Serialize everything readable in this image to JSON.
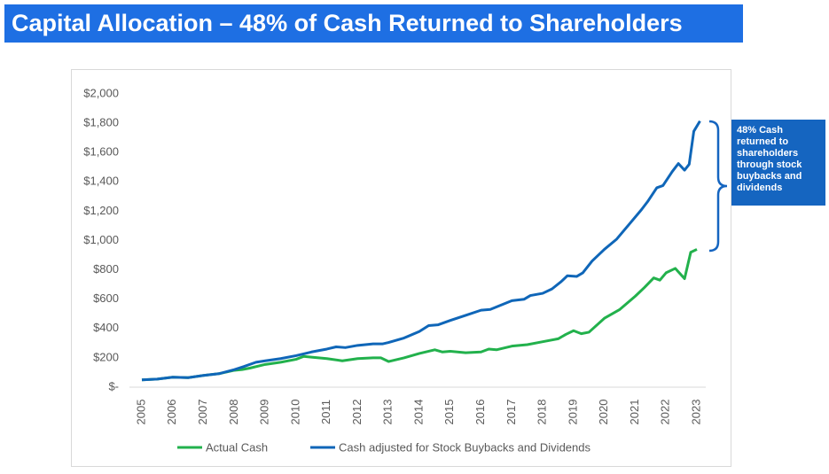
{
  "chart_data": {
    "type": "line",
    "title": "Capital Allocation – 48% of Cash Returned to Shareholders",
    "annotation": "48% Cash returned to shareholders through stock buybacks and dividends",
    "xlim": [
      2005,
      2023
    ],
    "xticks": [
      2005,
      2006,
      2007,
      2008,
      2009,
      2010,
      2011,
      2012,
      2013,
      2014,
      2015,
      2016,
      2017,
      2018,
      2019,
      2020,
      2021,
      2022,
      2023
    ],
    "ylim": [
      0,
      2000
    ],
    "yticks": [
      {
        "value": 0,
        "label": "$-"
      },
      {
        "value": 200,
        "label": "$200"
      },
      {
        "value": 400,
        "label": "$400"
      },
      {
        "value": 600,
        "label": "$600"
      },
      {
        "value": 800,
        "label": "$800"
      },
      {
        "value": 1000,
        "label": "$1,000"
      },
      {
        "value": 1200,
        "label": "$1,200"
      },
      {
        "value": 1400,
        "label": "$1,400"
      },
      {
        "value": 1600,
        "label": "$1,600"
      },
      {
        "value": 1800,
        "label": "$1,800"
      },
      {
        "value": 2000,
        "label": "$2,000"
      }
    ],
    "grid": false,
    "legend": "bottom",
    "series": [
      {
        "name": "Actual Cash",
        "color": "#22b14c",
        "x": [
          2005,
          2005.5,
          2006,
          2006.5,
          2007,
          2007.5,
          2008,
          2008.25,
          2008.5,
          2009,
          2009.5,
          2010,
          2010.25,
          2010.5,
          2011,
          2011.5,
          2012,
          2012.5,
          2012.75,
          2013,
          2013.5,
          2014,
          2014.5,
          2014.75,
          2015,
          2015.5,
          2016,
          2016.25,
          2016.5,
          2017,
          2017.5,
          2018,
          2018.5,
          2018.75,
          2019,
          2019.25,
          2019.5,
          2020,
          2020.5,
          2021,
          2021.3,
          2021.6,
          2021.8,
          2022,
          2022.3,
          2022.6,
          2022.8,
          2023.0
        ],
        "values": [
          50,
          55,
          68,
          65,
          80,
          92,
          115,
          120,
          130,
          155,
          170,
          190,
          210,
          205,
          195,
          180,
          195,
          200,
          200,
          175,
          200,
          230,
          255,
          240,
          245,
          235,
          240,
          260,
          255,
          280,
          290,
          310,
          330,
          360,
          385,
          365,
          375,
          470,
          530,
          620,
          680,
          745,
          730,
          780,
          810,
          740,
          920,
          940
        ]
      },
      {
        "name": "Cash adjusted for Stock Buybacks and Dividends",
        "color": "#0f66b8",
        "x": [
          2005,
          2005.5,
          2006,
          2006.5,
          2007,
          2007.5,
          2008,
          2008.3,
          2008.7,
          2009,
          2009.5,
          2010,
          2010.5,
          2011,
          2011.3,
          2011.6,
          2012,
          2012.5,
          2012.8,
          2013,
          2013.5,
          2014,
          2014.3,
          2014.6,
          2015,
          2015.5,
          2016,
          2016.3,
          2017,
          2017.4,
          2017.6,
          2018,
          2018.3,
          2018.6,
          2018.8,
          2019.1,
          2019.3,
          2019.6,
          2020,
          2020.4,
          2020.8,
          2021.2,
          2021.4,
          2021.7,
          2021.9,
          2022.2,
          2022.4,
          2022.6,
          2022.75,
          2022.9,
          2023.1
        ],
        "values": [
          50,
          55,
          68,
          65,
          80,
          92,
          120,
          140,
          170,
          180,
          195,
          215,
          240,
          260,
          275,
          270,
          285,
          295,
          295,
          305,
          335,
          380,
          420,
          425,
          455,
          490,
          525,
          530,
          590,
          600,
          625,
          640,
          670,
          720,
          760,
          755,
          780,
          860,
          940,
          1010,
          1110,
          1210,
          1265,
          1360,
          1375,
          1470,
          1525,
          1480,
          1520,
          1745,
          1815
        ]
      }
    ]
  }
}
